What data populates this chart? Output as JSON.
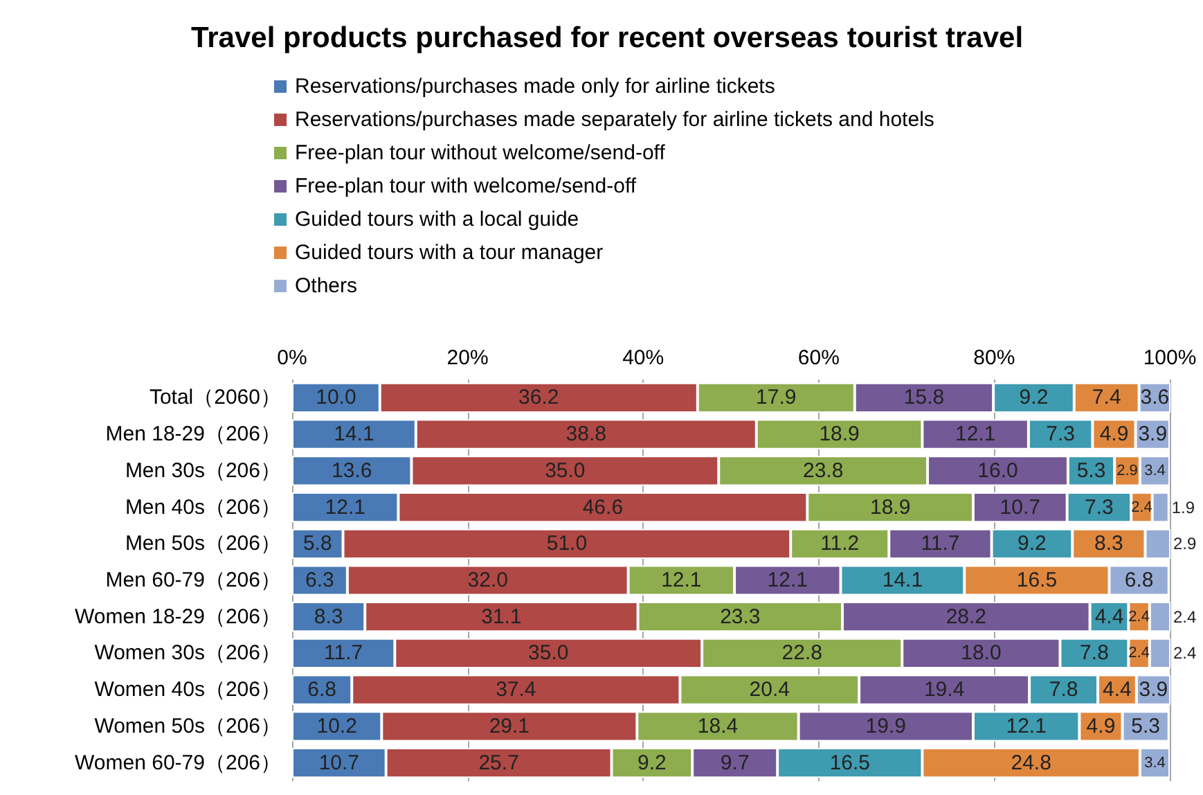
{
  "chart_data": {
    "type": "bar",
    "title": "Travel products purchased for recent overseas tourist travel",
    "orientation": "horizontal",
    "stacked": true,
    "grid": "x",
    "legend": "top left",
    "categories": [
      "Total（2060）",
      "Men 18-29（206）",
      "Men 30s（206）",
      "Men 40s（206）",
      "Men 50s（206）",
      "Men 60-79（206）",
      "Women 18-29（206）",
      "Women 30s（206）",
      "Women 40s（206）",
      "Women 50s（206）",
      "Women 60-79（206）"
    ],
    "xlim": [
      0,
      100
    ],
    "xticks": [
      {
        "value": 0,
        "label": "0%"
      },
      {
        "value": 20,
        "label": "20%"
      },
      {
        "value": 40,
        "label": "40%"
      },
      {
        "value": 60,
        "label": "60%"
      },
      {
        "value": 80,
        "label": "80%"
      },
      {
        "value": 100,
        "label": "100%"
      }
    ],
    "series": [
      {
        "name": "Reservations/purchases made only for airline tickets",
        "color": "#4a7ab5",
        "values": [
          10.0,
          14.1,
          13.6,
          12.1,
          5.8,
          6.3,
          8.3,
          11.7,
          6.8,
          10.2,
          10.7
        ],
        "value_labels": [
          "10.0",
          "14.1",
          "13.6",
          "12.1",
          "5.8",
          "6.3",
          "8.3",
          "11.7",
          "6.8",
          "10.2",
          "10.7"
        ]
      },
      {
        "name": "Reservations/purchases made separately for airline tickets and hotels",
        "color": "#b04845",
        "values": [
          36.2,
          38.8,
          35.0,
          46.6,
          51.0,
          32.0,
          31.1,
          35.0,
          37.4,
          29.1,
          25.7
        ],
        "value_labels": [
          "36.2",
          "38.8",
          "35.0",
          "46.6",
          "51.0",
          "32.0",
          "31.1",
          "35.0",
          "37.4",
          "29.1",
          "25.7"
        ]
      },
      {
        "name": "Free-plan tour without welcome/send-off",
        "color": "#8ead4f",
        "values": [
          17.9,
          18.9,
          23.8,
          18.9,
          11.2,
          12.1,
          23.3,
          22.8,
          20.4,
          18.4,
          9.2
        ],
        "value_labels": [
          "17.9",
          "18.9",
          "23.8",
          "18.9",
          "11.2",
          "12.1",
          "23.3",
          "22.8",
          "20.4",
          "18.4",
          "9.2"
        ]
      },
      {
        "name": "Free-plan tour with welcome/send-off",
        "color": "#735a96",
        "values": [
          15.8,
          12.1,
          16.0,
          10.7,
          11.7,
          12.1,
          28.2,
          18.0,
          19.4,
          19.9,
          9.7
        ],
        "value_labels": [
          "15.8",
          "12.1",
          "16.0",
          "10.7",
          "11.7",
          "12.1",
          "28.2",
          "18.0",
          "19.4",
          "19.9",
          "9.7"
        ]
      },
      {
        "name": "Guided tours with a local guide",
        "color": "#3f9bb0",
        "values": [
          9.2,
          7.3,
          5.3,
          7.3,
          9.2,
          14.1,
          4.4,
          7.8,
          7.8,
          12.1,
          16.5
        ],
        "value_labels": [
          "9.2",
          "7.3",
          "5.3",
          "7.3",
          "9.2",
          "14.1",
          "4.4",
          "7.8",
          "7.8",
          "12.1",
          "16.5"
        ]
      },
      {
        "name": "Guided tours with a tour manager",
        "color": "#e0873e",
        "values": [
          7.4,
          4.9,
          2.9,
          2.4,
          8.3,
          16.5,
          2.4,
          2.4,
          4.4,
          4.9,
          24.8
        ],
        "value_labels": [
          "7.4",
          "4.9",
          "2.9",
          "2.4",
          "8.3",
          "16.5",
          "2.4",
          "2.4",
          "4.4",
          "4.9",
          "24.8"
        ]
      },
      {
        "name": "Others",
        "color": "#97acd4",
        "values": [
          3.6,
          3.9,
          3.4,
          1.9,
          2.9,
          6.8,
          2.4,
          2.4,
          3.9,
          5.3,
          3.4
        ],
        "value_labels": [
          "3.6",
          "3.9",
          "3.4",
          "1.9",
          "2.9",
          "6.8",
          "2.4",
          "2.4",
          "3.9",
          "5.3",
          "3.4"
        ]
      }
    ]
  }
}
